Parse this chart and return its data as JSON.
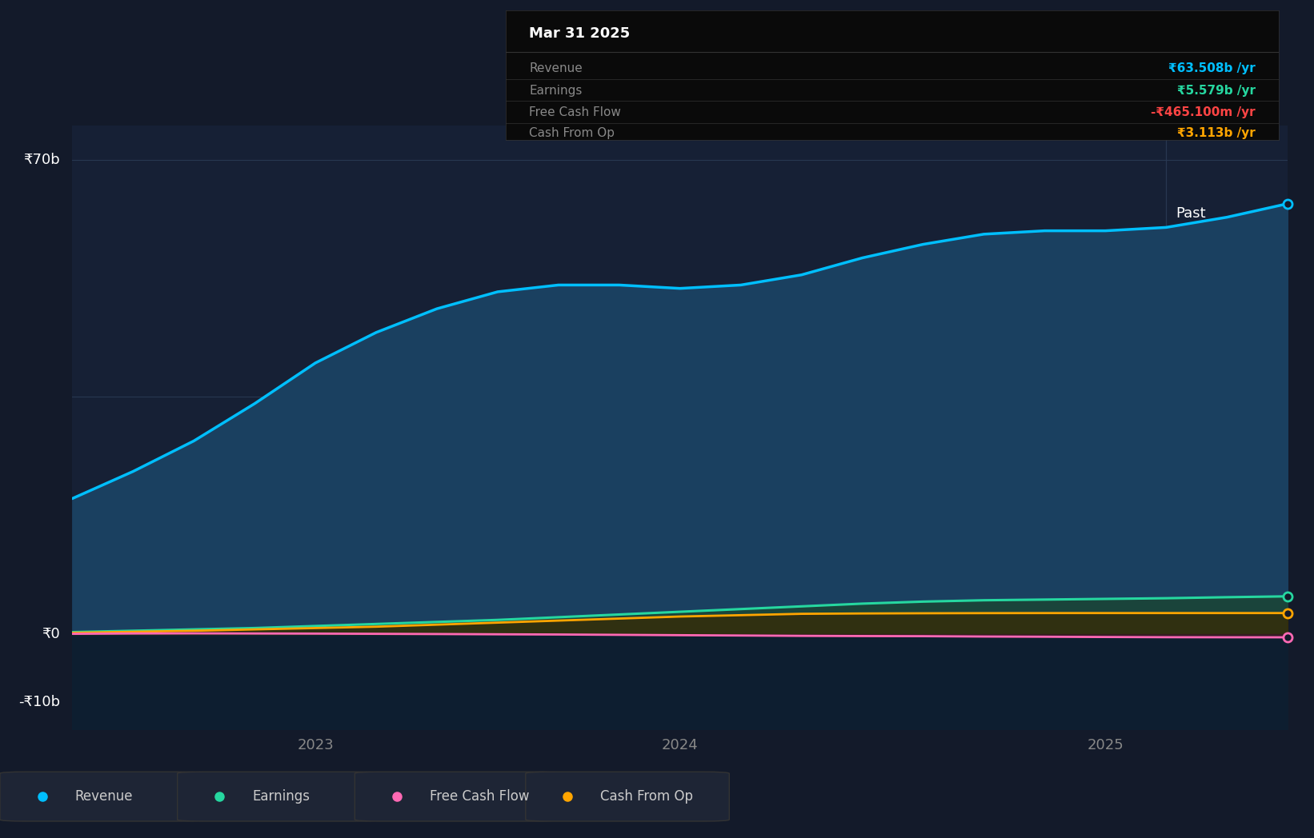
{
  "bg_color": "#131a2a",
  "plot_bg_left": "#162035",
  "plot_bg_right": "#162035",
  "grid_color": "#2a3a55",
  "title_box": {
    "title": "Mar 31 2025",
    "rows": [
      {
        "label": "Revenue",
        "value": "₹63.508b /yr",
        "color": "#00bfff"
      },
      {
        "label": "Earnings",
        "value": "₹5.579b /yr",
        "color": "#26d7a0"
      },
      {
        "label": "Free Cash Flow",
        "value": "-₹465.100m /yr",
        "color": "#ff4444"
      },
      {
        "label": "Cash From Op",
        "value": "₹3.113b /yr",
        "color": "#ffa500"
      }
    ]
  },
  "ylabel_top": "₹70b",
  "ylabel_zero": "₹0",
  "ylabel_neg": "-₹10b",
  "x_ticks": [
    "2023",
    "2024",
    "2025"
  ],
  "x_tick_pos": [
    2.0,
    5.0,
    8.5
  ],
  "past_label": "Past",
  "legend": [
    {
      "label": "Revenue",
      "color": "#00bfff"
    },
    {
      "label": "Earnings",
      "color": "#26d7a0"
    },
    {
      "label": "Free Cash Flow",
      "color": "#ff69b4"
    },
    {
      "label": "Cash From Op",
      "color": "#ffa500"
    }
  ],
  "series": {
    "x": [
      0.0,
      0.5,
      1.0,
      1.5,
      2.0,
      2.5,
      3.0,
      3.5,
      4.0,
      4.5,
      5.0,
      5.5,
      6.0,
      6.5,
      7.0,
      7.5,
      8.0,
      8.5,
      9.0,
      9.5,
      10.0
    ],
    "revenue": [
      20.0,
      24.0,
      28.5,
      34.0,
      40.0,
      44.5,
      48.0,
      50.5,
      51.5,
      51.5,
      51.0,
      51.5,
      53.0,
      55.5,
      57.5,
      59.0,
      59.5,
      59.5,
      60.0,
      61.5,
      63.5
    ],
    "earnings": [
      0.3,
      0.5,
      0.7,
      0.9,
      1.2,
      1.5,
      1.8,
      2.1,
      2.5,
      2.9,
      3.3,
      3.7,
      4.1,
      4.5,
      4.8,
      5.0,
      5.1,
      5.2,
      5.3,
      5.45,
      5.579
    ],
    "cash_from_op": [
      0.2,
      0.35,
      0.5,
      0.7,
      0.9,
      1.1,
      1.4,
      1.7,
      2.0,
      2.3,
      2.6,
      2.8,
      3.0,
      3.05,
      3.08,
      3.1,
      3.11,
      3.113,
      3.113,
      3.113,
      3.113
    ],
    "free_cash_flow": [
      0.05,
      0.1,
      0.12,
      0.1,
      0.08,
      0.05,
      0.02,
      -0.02,
      -0.05,
      -0.1,
      -0.15,
      -0.2,
      -0.25,
      -0.28,
      -0.3,
      -0.35,
      -0.38,
      -0.42,
      -0.45,
      -0.46,
      -0.4651
    ]
  },
  "ylim": [
    -14,
    75
  ],
  "vertical_line_x": 9.0,
  "xlim": [
    0.0,
    10.0
  ],
  "revenue_color": "#00bfff",
  "revenue_fill": "#1a4060",
  "below_zero_fill": "#0d1e30",
  "earnings_color": "#26d7a0",
  "earnings_fill": "#1a4535",
  "fcf_color": "#ff69b4",
  "fcf_fill_neg": "#3a1a25",
  "cashop_color": "#ffa500",
  "cashop_fill": "#3a2800"
}
